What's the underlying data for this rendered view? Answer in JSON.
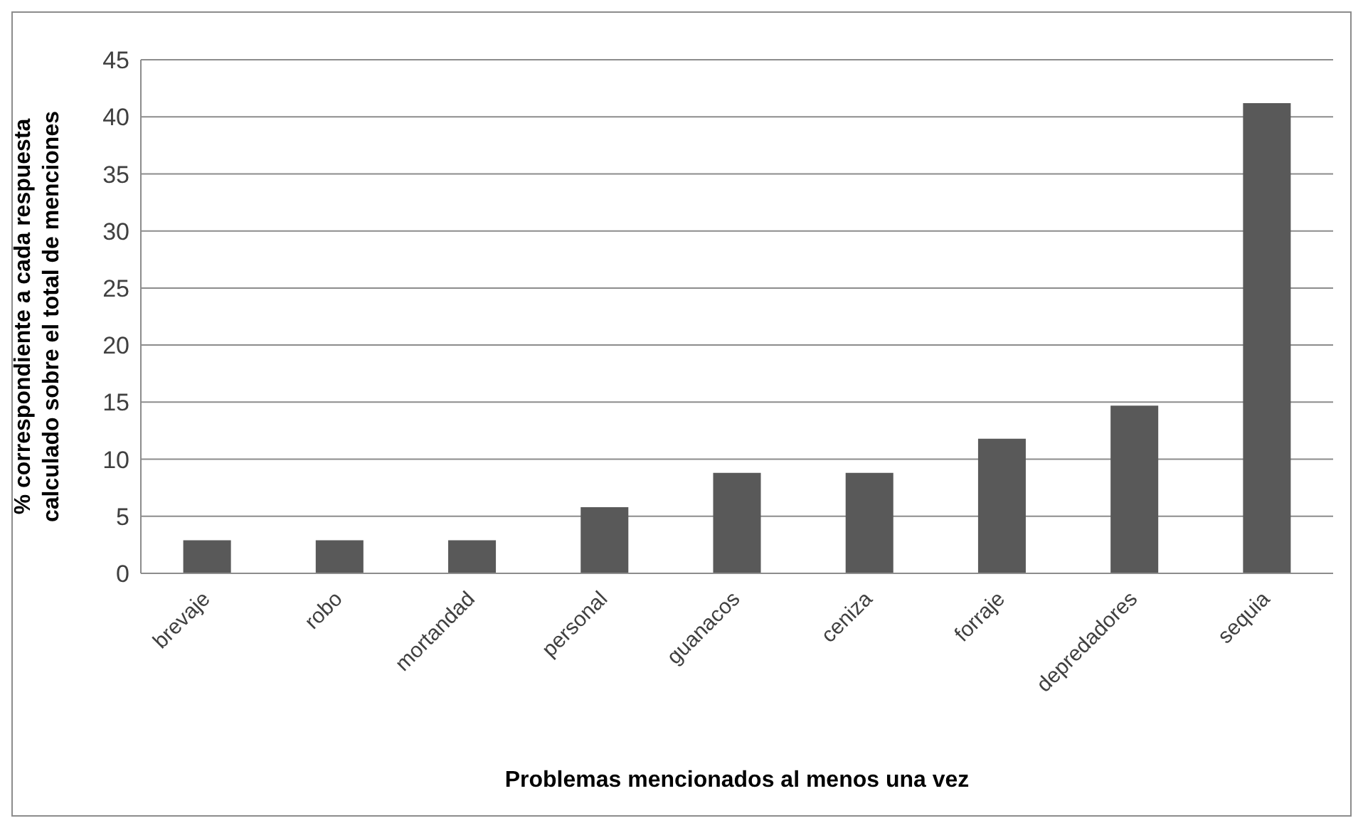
{
  "chart_data": {
    "type": "bar",
    "xlabel": "Problemas mencionados al menos una vez",
    "ylabel": "% correspondiente a cada respuesta calculado sobre el total de menciones",
    "categories": [
      "brevaje",
      "robo",
      "mortandad",
      "personal",
      "guanacos",
      "ceniza",
      "forraje",
      "depredadores",
      "sequia"
    ],
    "values": [
      2.9,
      2.9,
      2.9,
      5.8,
      8.8,
      8.8,
      11.8,
      14.7,
      41.2
    ],
    "color": "#595959",
    "ylim": [
      0,
      45
    ],
    "yticks": [
      0,
      5,
      10,
      15,
      20,
      25,
      30,
      35,
      40,
      45
    ],
    "grid": "y"
  }
}
